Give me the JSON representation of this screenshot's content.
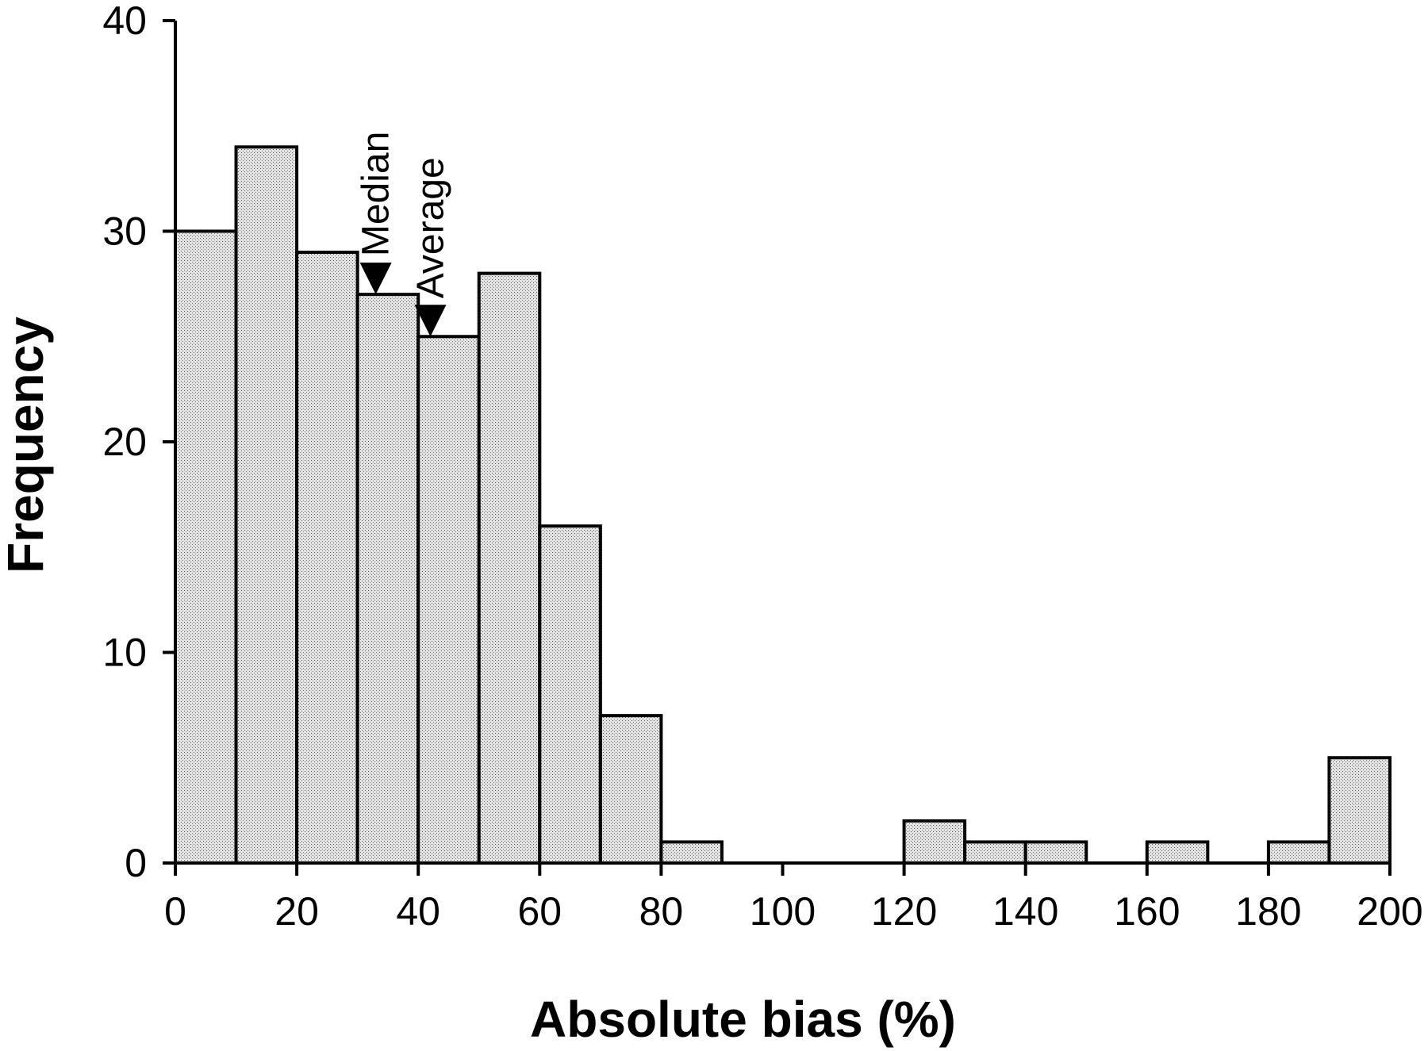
{
  "chart_data": {
    "type": "bar",
    "xlabel": "Absolute bias (%)",
    "ylabel": "Frequency",
    "bin_width": 10,
    "xlim": [
      0,
      200
    ],
    "ylim": [
      0,
      40
    ],
    "x_ticks": [
      0,
      20,
      40,
      60,
      80,
      100,
      120,
      140,
      160,
      180,
      200
    ],
    "y_ticks": [
      0,
      10,
      20,
      30,
      40
    ],
    "bins": [
      {
        "start": 0,
        "end": 10,
        "value": 30
      },
      {
        "start": 10,
        "end": 20,
        "value": 34
      },
      {
        "start": 20,
        "end": 30,
        "value": 29
      },
      {
        "start": 30,
        "end": 40,
        "value": 27
      },
      {
        "start": 40,
        "end": 50,
        "value": 25
      },
      {
        "start": 50,
        "end": 60,
        "value": 28
      },
      {
        "start": 60,
        "end": 70,
        "value": 16
      },
      {
        "start": 70,
        "end": 80,
        "value": 7
      },
      {
        "start": 80,
        "end": 90,
        "value": 1
      },
      {
        "start": 90,
        "end": 100,
        "value": 0
      },
      {
        "start": 100,
        "end": 110,
        "value": 0
      },
      {
        "start": 110,
        "end": 120,
        "value": 0
      },
      {
        "start": 120,
        "end": 130,
        "value": 2
      },
      {
        "start": 130,
        "end": 140,
        "value": 1
      },
      {
        "start": 140,
        "end": 150,
        "value": 1
      },
      {
        "start": 150,
        "end": 160,
        "value": 0
      },
      {
        "start": 160,
        "end": 170,
        "value": 1
      },
      {
        "start": 170,
        "end": 180,
        "value": 0
      },
      {
        "start": 180,
        "end": 190,
        "value": 1
      },
      {
        "start": 190,
        "end": 200,
        "value": 5
      }
    ],
    "annotations": [
      {
        "label": "Median",
        "x": 33,
        "y": 27
      },
      {
        "label": "Average",
        "x": 42,
        "y": 25
      }
    ],
    "grid": false,
    "fill_color": "#d6d6d6"
  }
}
